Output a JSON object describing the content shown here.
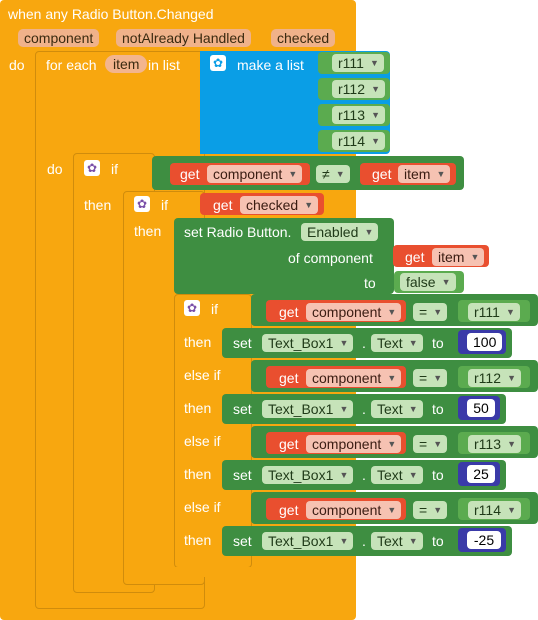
{
  "event": {
    "title": "when any Radio Button.Changed",
    "params": [
      "component",
      "notAlready Handled",
      "checked"
    ],
    "do_label": "do"
  },
  "foreach": {
    "label": "for each",
    "var": "item",
    "in_list": "in list",
    "do_label": "do"
  },
  "make_list": {
    "label": "make a list",
    "items": [
      "r111",
      "r112",
      "r113",
      "r114"
    ]
  },
  "if_outer": {
    "if_label": "if",
    "get": "get",
    "left": "component",
    "op": "≠",
    "right": "item",
    "then": "then"
  },
  "if_checked": {
    "if_label": "if",
    "get": "get",
    "var": "checked",
    "then": "then"
  },
  "set_enabled": {
    "label": "set Radio Button.",
    "prop": "Enabled",
    "of_component": "of component",
    "get": "get",
    "item": "item",
    "to": "to",
    "value": "false"
  },
  "if_chain": {
    "if_label": "if",
    "then_label": "then",
    "elseif_label": "else if",
    "get": "get",
    "var": "component",
    "op": "=",
    "set": "set",
    "target": "Text_Box1",
    "dot": ".",
    "prop": "Text",
    "to": "to",
    "branches": [
      {
        "rb": "r111",
        "value": "100"
      },
      {
        "rb": "r112",
        "value": "50"
      },
      {
        "rb": "r113",
        "value": "25"
      },
      {
        "rb": "r114",
        "value": "-25"
      }
    ]
  }
}
